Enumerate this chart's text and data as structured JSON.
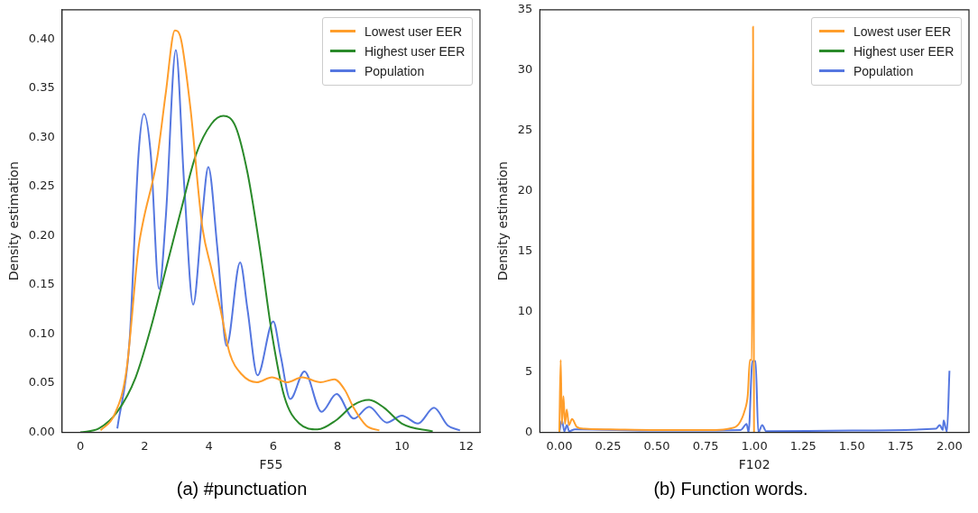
{
  "chart_data": [
    {
      "type": "line",
      "title": "(a) #punctuation",
      "xlabel": "F55",
      "ylabel": "Density estimation",
      "xlim": [
        -0.57,
        12.43
      ],
      "xticks": [
        0,
        2,
        4,
        6,
        8,
        10,
        12
      ],
      "ylim": [
        0,
        0.43
      ],
      "yticks": [
        {
          "value": 0,
          "label": "0.00"
        },
        {
          "value": 0.05,
          "label": "0.05"
        },
        {
          "value": 0.1,
          "label": "0.10"
        },
        {
          "value": 0.15,
          "label": "0.15"
        },
        {
          "value": 0.2,
          "label": "0.20"
        },
        {
          "value": 0.25,
          "label": "0.25"
        },
        {
          "value": 0.3,
          "label": "0.30"
        },
        {
          "value": 0.35,
          "label": "0.35"
        },
        {
          "value": 0.4,
          "label": "0.40"
        }
      ],
      "legend": "top right",
      "grid": false,
      "marker": "none",
      "line_style": "solid",
      "series": [
        {
          "name": "Lowest user EER",
          "color": "#ff9e2c",
          "x": [
            0.63,
            1.06,
            1.43,
            1.81,
            1.95,
            2.38,
            2.66,
            2.94,
            3.13,
            3.42,
            3.79,
            4.08,
            4.36,
            4.64,
            5.02,
            5.49,
            5.96,
            6.43,
            6.9,
            7.47,
            7.9,
            8.23,
            8.5,
            8.89,
            9.3
          ],
          "values": [
            0.002,
            0.018,
            0.062,
            0.188,
            0.214,
            0.277,
            0.346,
            0.409,
            0.4,
            0.331,
            0.21,
            0.166,
            0.125,
            0.081,
            0.059,
            0.051,
            0.056,
            0.051,
            0.056,
            0.051,
            0.054,
            0.043,
            0.025,
            0.007,
            0.002
          ]
        },
        {
          "name": "Highest user EER",
          "color": "#2a8a2a",
          "x": [
            0,
            0.58,
            1.15,
            1.72,
            2.19,
            2.66,
            3.13,
            3.6,
            4.08,
            4.45,
            4.83,
            5.2,
            5.58,
            5.96,
            6.34,
            6.81,
            7.38,
            7.94,
            8.5,
            8.98,
            9.45,
            10,
            10.96
          ],
          "values": [
            0,
            0.004,
            0.021,
            0.056,
            0.106,
            0.166,
            0.226,
            0.283,
            0.314,
            0.322,
            0.311,
            0.264,
            0.188,
            0.1,
            0.037,
            0.009,
            0.003,
            0.012,
            0.028,
            0.033,
            0.025,
            0.009,
            0.001
          ]
        },
        {
          "name": "Population",
          "color": "#5577e0",
          "x": [
            1.15,
            1.53,
            1.81,
            1.98,
            2.19,
            2.45,
            2.66,
            2.97,
            3.23,
            3.51,
            3.79,
            3.98,
            4.26,
            4.55,
            4.97,
            5.2,
            5.51,
            6,
            6.23,
            6.53,
            6.97,
            7.5,
            7.97,
            8.5,
            8.98,
            9.53,
            10,
            10.5,
            11,
            11.43,
            11.81
          ],
          "values": [
            0.004,
            0.093,
            0.283,
            0.324,
            0.283,
            0.146,
            0.22,
            0.389,
            0.252,
            0.13,
            0.22,
            0.27,
            0.188,
            0.088,
            0.173,
            0.125,
            0.058,
            0.113,
            0.078,
            0.034,
            0.062,
            0.021,
            0.039,
            0.014,
            0.026,
            0.01,
            0.017,
            0.009,
            0.025,
            0.007,
            0.002
          ]
        }
      ]
    },
    {
      "type": "line",
      "title": "(b) Function words.",
      "xlabel": "F102",
      "ylabel": "Density estimation",
      "xlim": [
        -0.1,
        2.1
      ],
      "xticks": [
        {
          "value": 0,
          "label": "0.00"
        },
        {
          "value": 0.25,
          "label": "0.25"
        },
        {
          "value": 0.5,
          "label": "0.50"
        },
        {
          "value": 0.75,
          "label": "0.75"
        },
        {
          "value": 1,
          "label": "1.00"
        },
        {
          "value": 1.25,
          "label": "1.25"
        },
        {
          "value": 1.5,
          "label": "1.50"
        },
        {
          "value": 1.75,
          "label": "1.75"
        },
        {
          "value": 2,
          "label": "2.00"
        }
      ],
      "ylim": [
        0,
        35
      ],
      "yticks": [
        0,
        5,
        10,
        15,
        20,
        25,
        30,
        35
      ],
      "legend": "top right",
      "grid": false,
      "marker": "none",
      "line_style": "solid",
      "series": [
        {
          "name": "Lowest user EER",
          "color": "#ff9e2c",
          "x": [
            0,
            0.007,
            0.013,
            0.021,
            0.029,
            0.038,
            0.049,
            0.065,
            0.09,
            0.13,
            0.26,
            0.5,
            0.8,
            0.87,
            0.92,
            0.95,
            0.966,
            0.977,
            0.987,
            0.993,
            0.998
          ],
          "values": [
            0,
            6,
            0.7,
            3,
            0.7,
            1.9,
            0.6,
            1.1,
            0.45,
            0.3,
            0.25,
            0.2,
            0.2,
            0.3,
            0.7,
            1.8,
            3.1,
            6,
            6,
            33.6,
            0
          ]
        },
        {
          "name": "Highest user EER",
          "color": "#2a8a2a"
        },
        {
          "name": "Population",
          "color": "#5577e0",
          "x": [
            0,
            0.013,
            0.026,
            0.039,
            0.05,
            0.08,
            0.5,
            0.93,
            0.96,
            0.97,
            0.99,
            1.006,
            1.02,
            1.04,
            1.06,
            1.5,
            1.93,
            1.95,
            1.966,
            1.97,
            1.987,
            2
          ],
          "values": [
            0,
            1,
            0.1,
            0.6,
            0.1,
            0.25,
            0.15,
            0.2,
            0.7,
            0,
            5.9,
            5.9,
            0,
            0.6,
            0.1,
            0.15,
            0.3,
            0.6,
            0.2,
            1,
            0.05,
            5.1
          ]
        }
      ]
    }
  ]
}
